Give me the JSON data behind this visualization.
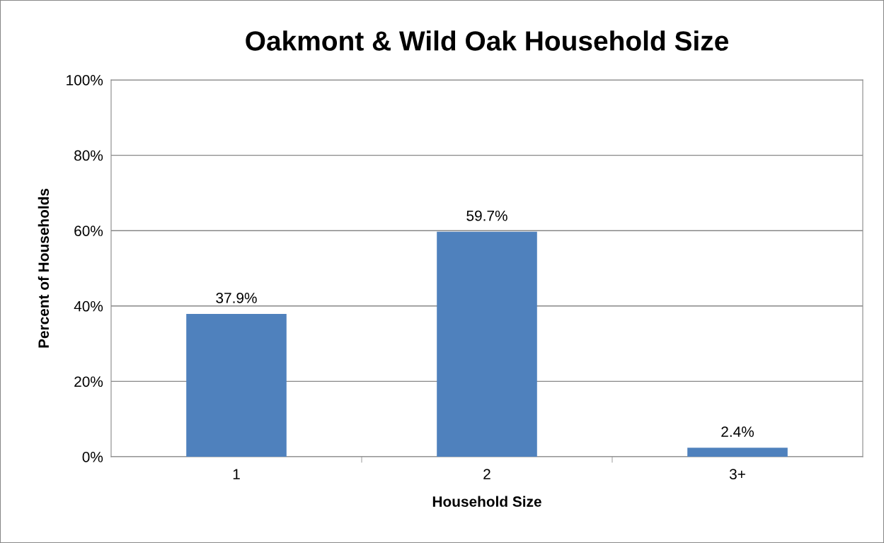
{
  "chart_data": {
    "type": "bar",
    "title": "Oakmont & Wild Oak Household Size",
    "xlabel": "Household Size",
    "ylabel": "Percent of Households",
    "categories": [
      "1",
      "2",
      "3+"
    ],
    "values": [
      37.9,
      59.7,
      2.4
    ],
    "color": "#4f81bd",
    "value_labels": [
      "37.9%",
      "59.7%",
      "2.4%"
    ],
    "ylim": [
      0,
      100
    ],
    "yticks": [
      {
        "value": 0,
        "label": "0%"
      },
      {
        "value": 20,
        "label": "20%"
      },
      {
        "value": 40,
        "label": "40%"
      },
      {
        "value": 60,
        "label": "60%"
      },
      {
        "value": 80,
        "label": "80%"
      },
      {
        "value": 100,
        "label": "100%"
      }
    ],
    "grid": "y",
    "legend": false
  }
}
